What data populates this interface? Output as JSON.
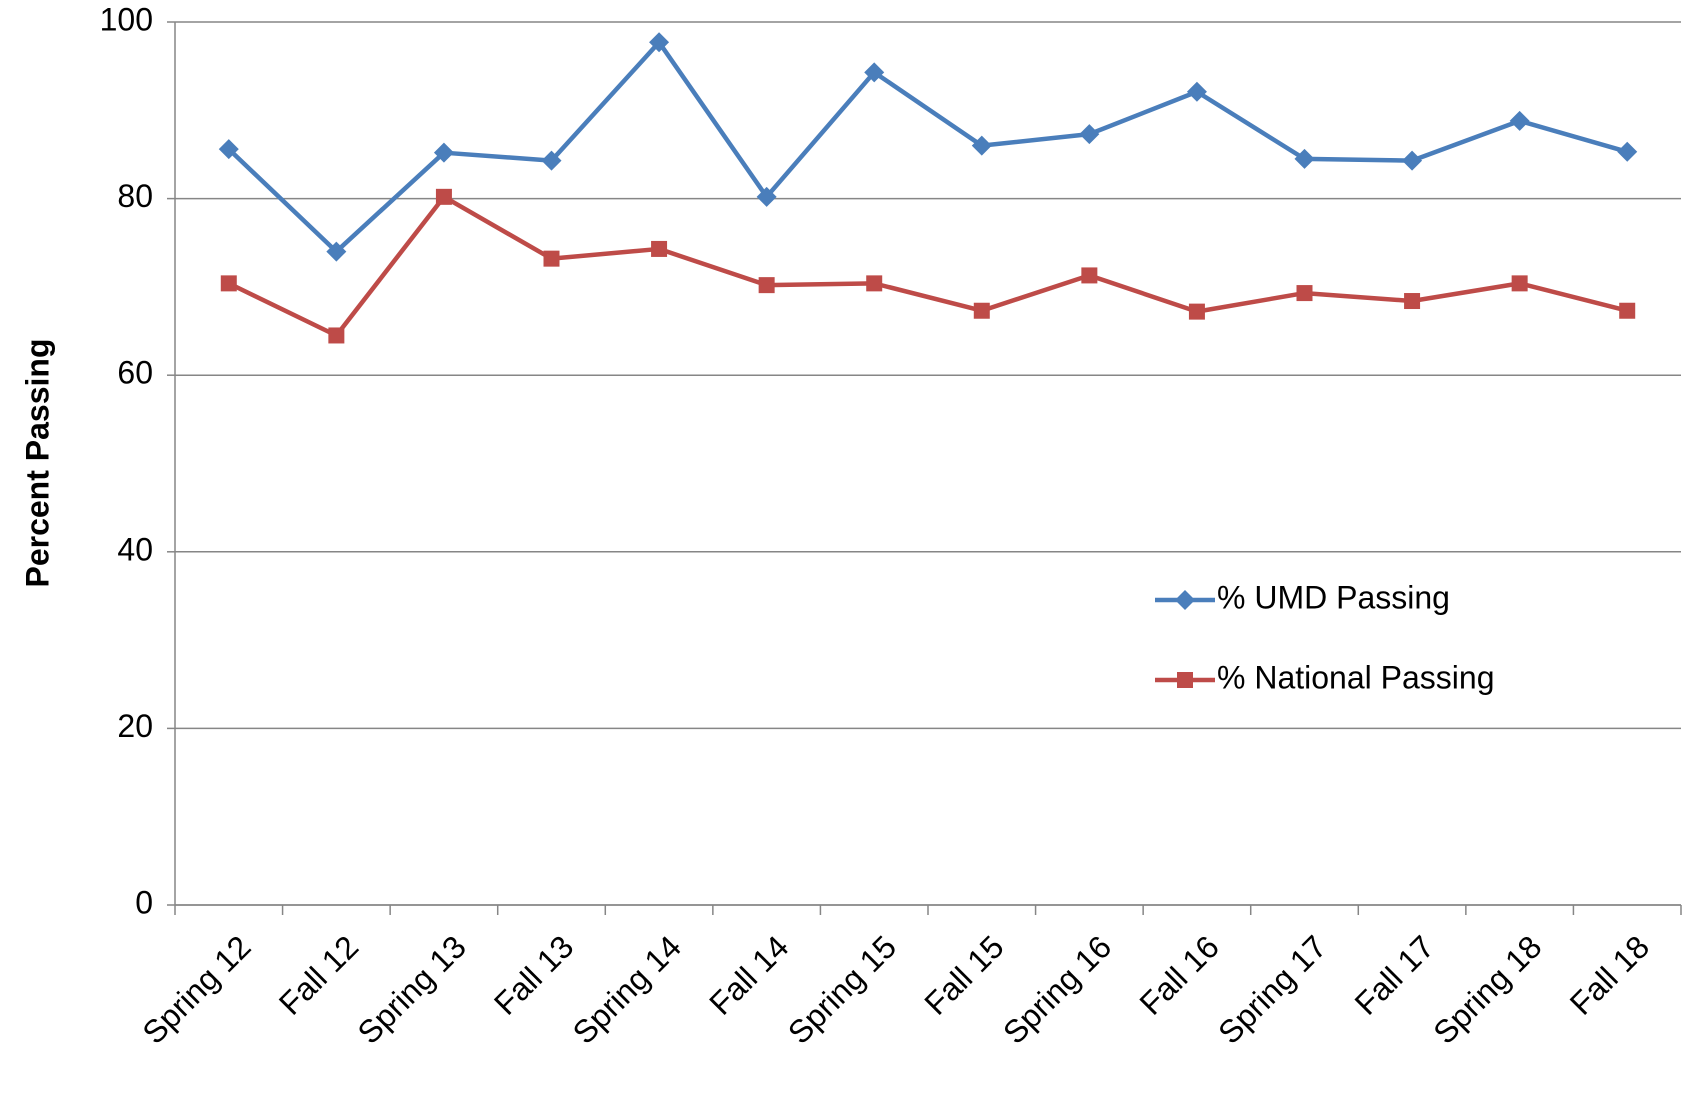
{
  "chart_data": {
    "type": "line",
    "y_label": "Percent Passing",
    "categories": [
      "Spring 12",
      "Fall 12",
      "Spring 13",
      "Fall 13",
      "Spring 14",
      "Fall 14",
      "Spring 15",
      "Fall 15",
      "Spring 16",
      "Fall 16",
      "Spring 17",
      "Fall 17",
      "Spring 18",
      "Fall 18"
    ],
    "series": [
      {
        "name": "% UMD Passing",
        "color": "#4a7ebb",
        "marker": "diamond",
        "values": [
          85.6,
          74.0,
          85.2,
          84.3,
          97.7,
          80.2,
          94.3,
          86.0,
          87.3,
          92.1,
          84.5,
          84.3,
          88.8,
          85.3
        ]
      },
      {
        "name": "% National Passing",
        "color": "#be4b48",
        "marker": "square",
        "values": [
          70.4,
          64.5,
          80.2,
          73.2,
          74.3,
          70.2,
          70.4,
          67.3,
          71.3,
          67.2,
          69.3,
          68.4,
          70.4,
          67.3
        ]
      }
    ],
    "ylim": [
      0,
      100
    ],
    "yticks": [
      0,
      20,
      40,
      60,
      80,
      100
    ],
    "grid": true,
    "legend": "right"
  }
}
